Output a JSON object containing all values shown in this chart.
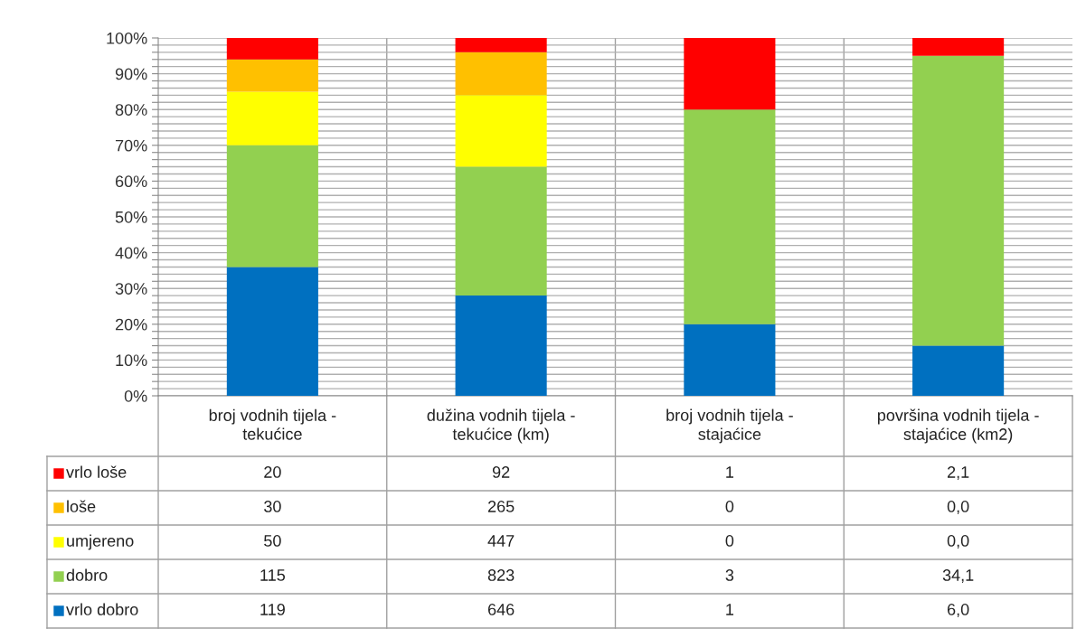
{
  "chart_data": {
    "type": "bar",
    "stacked": true,
    "categories": [
      "broj vodnih tijela -\ntekućice",
      "dužina vodnih tijela -\ntekućice (km)",
      "broj vodnih tijela -\nstajaćice",
      "površina vodnih tijela -\nstajaćice (km2)"
    ],
    "series": [
      {
        "name": "vrlo dobro",
        "color": "#0070c0",
        "values": [
          36,
          28,
          20,
          14
        ]
      },
      {
        "name": "dobro",
        "color": "#92d050",
        "values": [
          34,
          36,
          60,
          81
        ]
      },
      {
        "name": "umjereno",
        "color": "#ffff00",
        "values": [
          15,
          20,
          0,
          0
        ]
      },
      {
        "name": "loše",
        "color": "#ffc000",
        "values": [
          9,
          12,
          0,
          0
        ]
      },
      {
        "name": "vrlo loše",
        "color": "#ff0000",
        "values": [
          6,
          4,
          20,
          5
        ]
      }
    ],
    "annotations": [
      "20",
      "92",
      "1",
      "2,1",
      "30",
      "265",
      "0",
      "0,0",
      "50",
      "447",
      "0",
      "0,0",
      "115",
      "823",
      "3",
      "34,1",
      "119",
      "646",
      "1",
      "6,0"
    ],
    "ylim": [
      0,
      100
    ],
    "yticks": [
      {
        "value": 0,
        "label": "0%"
      },
      {
        "value": 2,
        "label": null
      },
      {
        "value": 4,
        "label": null
      },
      {
        "value": 6,
        "label": null
      },
      {
        "value": 8,
        "label": null
      },
      {
        "value": 10,
        "label": "10%"
      },
      {
        "value": 12,
        "label": null
      },
      {
        "value": 14,
        "label": null
      },
      {
        "value": 16,
        "label": null
      },
      {
        "value": 18,
        "label": null
      },
      {
        "value": 20,
        "label": "20%"
      },
      {
        "value": 22,
        "label": null
      },
      {
        "value": 24,
        "label": null
      },
      {
        "value": 26,
        "label": null
      },
      {
        "value": 28,
        "label": null
      },
      {
        "value": 30,
        "label": "30%"
      },
      {
        "value": 32,
        "label": null
      },
      {
        "value": 34,
        "label": null
      },
      {
        "value": 36,
        "label": null
      },
      {
        "value": 38,
        "label": null
      },
      {
        "value": 40,
        "label": "40%"
      },
      {
        "value": 42,
        "label": null
      },
      {
        "value": 44,
        "label": null
      },
      {
        "value": 46,
        "label": null
      },
      {
        "value": 48,
        "label": null
      },
      {
        "value": 50,
        "label": "50%"
      },
      {
        "value": 52,
        "label": null
      },
      {
        "value": 54,
        "label": null
      },
      {
        "value": 56,
        "label": null
      },
      {
        "value": 58,
        "label": null
      },
      {
        "value": 60,
        "label": "60%"
      },
      {
        "value": 62,
        "label": null
      },
      {
        "value": 64,
        "label": null
      },
      {
        "value": 66,
        "label": null
      },
      {
        "value": 68,
        "label": null
      },
      {
        "value": 70,
        "label": "70%"
      },
      {
        "value": 72,
        "label": null
      },
      {
        "value": 74,
        "label": null
      },
      {
        "value": 76,
        "label": null
      },
      {
        "value": 78,
        "label": null
      },
      {
        "value": 80,
        "label": "80%"
      },
      {
        "value": 82,
        "label": null
      },
      {
        "value": 84,
        "label": null
      },
      {
        "value": 86,
        "label": null
      },
      {
        "value": 88,
        "label": null
      },
      {
        "value": 90,
        "label": "90%"
      },
      {
        "value": 92,
        "label": null
      },
      {
        "value": 94,
        "label": null
      },
      {
        "value": 96,
        "label": null
      },
      {
        "value": 98,
        "label": null
      },
      {
        "value": 100,
        "label": "100%"
      }
    ],
    "grid": true,
    "legend": "bottom"
  }
}
